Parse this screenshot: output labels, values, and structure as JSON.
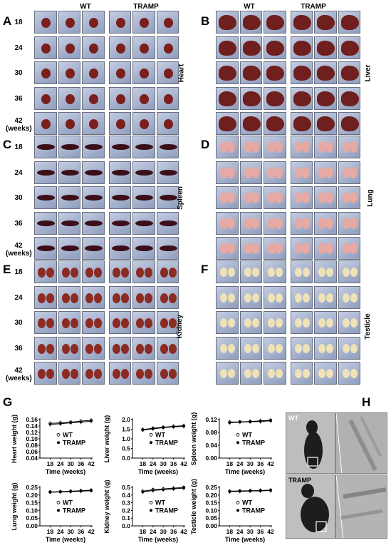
{
  "figure": {
    "panels": [
      "A",
      "B",
      "C",
      "D",
      "E",
      "F",
      "G",
      "H"
    ],
    "columns": [
      "WT",
      "TRAMP"
    ],
    "rows": [
      "18",
      "24",
      "30",
      "36",
      "42"
    ],
    "last_row_sub": "(weeks)",
    "organs": {
      "A": "Heart",
      "B": "Liver",
      "C": "Spleen",
      "D": "Lung",
      "E": "Kidney",
      "F": "Testicle"
    },
    "xray_labels": [
      "WT",
      "TRAMP"
    ]
  },
  "colors": {
    "heart": "#7a1f1c",
    "liver": "#6e1f1e",
    "spleen": "#3b0e18",
    "lung": "#e6a9a3",
    "kidney": "#8b2b22",
    "testicle": "#efe2b7",
    "bg": "#a9b8d4"
  },
  "chart_data": [
    {
      "type": "line",
      "ylabel": "Heart weight (g)",
      "xlabel": "Time (weeks)",
      "x": [
        18,
        24,
        30,
        36,
        42
      ],
      "yticks": [
        "0.04",
        "0.06",
        "0.08",
        "0.10",
        "0.12",
        "0.14",
        "0.16"
      ],
      "ylim": [
        0.04,
        0.16
      ],
      "series": [
        {
          "name": "WT",
          "values": [
            0.148,
            0.15,
            0.152,
            0.155,
            0.158
          ]
        },
        {
          "name": "TRAMP",
          "values": [
            0.145,
            0.147,
            0.15,
            0.152,
            0.155
          ]
        }
      ]
    },
    {
      "type": "line",
      "ylabel": "Liver weight (g)",
      "xlabel": "Time (weeks)",
      "x": [
        18,
        24,
        30,
        36,
        42
      ],
      "yticks": [
        "0.0",
        "0.5",
        "1.0",
        "1.5",
        "2.0"
      ],
      "ylim": [
        0.0,
        2.0
      ],
      "series": [
        {
          "name": "WT",
          "values": [
            1.48,
            1.55,
            1.6,
            1.65,
            1.68
          ]
        },
        {
          "name": "TRAMP",
          "values": [
            1.45,
            1.52,
            1.58,
            1.62,
            1.65
          ]
        }
      ]
    },
    {
      "type": "line",
      "ylabel": "Spleen weight (g)",
      "xlabel": "Time (weeks)",
      "x": [
        18,
        24,
        30,
        36,
        42
      ],
      "yticks": [
        "0.00",
        "0.04",
        "0.08",
        "0.12"
      ],
      "ylim": [
        0.0,
        0.12
      ],
      "series": [
        {
          "name": "WT",
          "values": [
            0.112,
            0.113,
            0.114,
            0.116,
            0.118
          ]
        },
        {
          "name": "TRAMP",
          "values": [
            0.11,
            0.112,
            0.113,
            0.114,
            0.116
          ]
        }
      ]
    },
    {
      "type": "line",
      "ylabel": "Lung weight (g)",
      "xlabel": "Time (weeks)",
      "x": [
        18,
        24,
        30,
        36,
        42
      ],
      "yticks": [
        "0.00",
        "0.05",
        "0.10",
        "0.15",
        "0.20",
        "0.25"
      ],
      "ylim": [
        0.0,
        0.25
      ],
      "series": [
        {
          "name": "WT",
          "values": [
            0.22,
            0.222,
            0.225,
            0.228,
            0.232
          ]
        },
        {
          "name": "TRAMP",
          "values": [
            0.218,
            0.22,
            0.222,
            0.225,
            0.228
          ]
        }
      ]
    },
    {
      "type": "line",
      "ylabel": "Kidney weight (g)",
      "xlabel": "Time (weeks)",
      "x": [
        18,
        24,
        30,
        36,
        42
      ],
      "yticks": [
        "0.0",
        "0.1",
        "0.2",
        "0.3",
        "0.4",
        "0.5"
      ],
      "ylim": [
        0.0,
        0.5
      ],
      "series": [
        {
          "name": "WT",
          "values": [
            0.45,
            0.47,
            0.48,
            0.49,
            0.5
          ]
        },
        {
          "name": "TRAMP",
          "values": [
            0.44,
            0.46,
            0.47,
            0.48,
            0.49
          ]
        }
      ]
    },
    {
      "type": "line",
      "ylabel": "Testicle weight (g)",
      "xlabel": "Time (weeks)",
      "x": [
        18,
        24,
        30,
        36,
        42
      ],
      "yticks": [
        "0.00",
        "0.05",
        "0.10",
        "0.15",
        "0.20",
        "0.25"
      ],
      "ylim": [
        0.0,
        0.25
      ],
      "series": [
        {
          "name": "WT",
          "values": [
            0.225,
            0.227,
            0.228,
            0.23,
            0.232
          ]
        },
        {
          "name": "TRAMP",
          "values": [
            0.222,
            0.224,
            0.226,
            0.227,
            0.229
          ]
        }
      ]
    }
  ]
}
